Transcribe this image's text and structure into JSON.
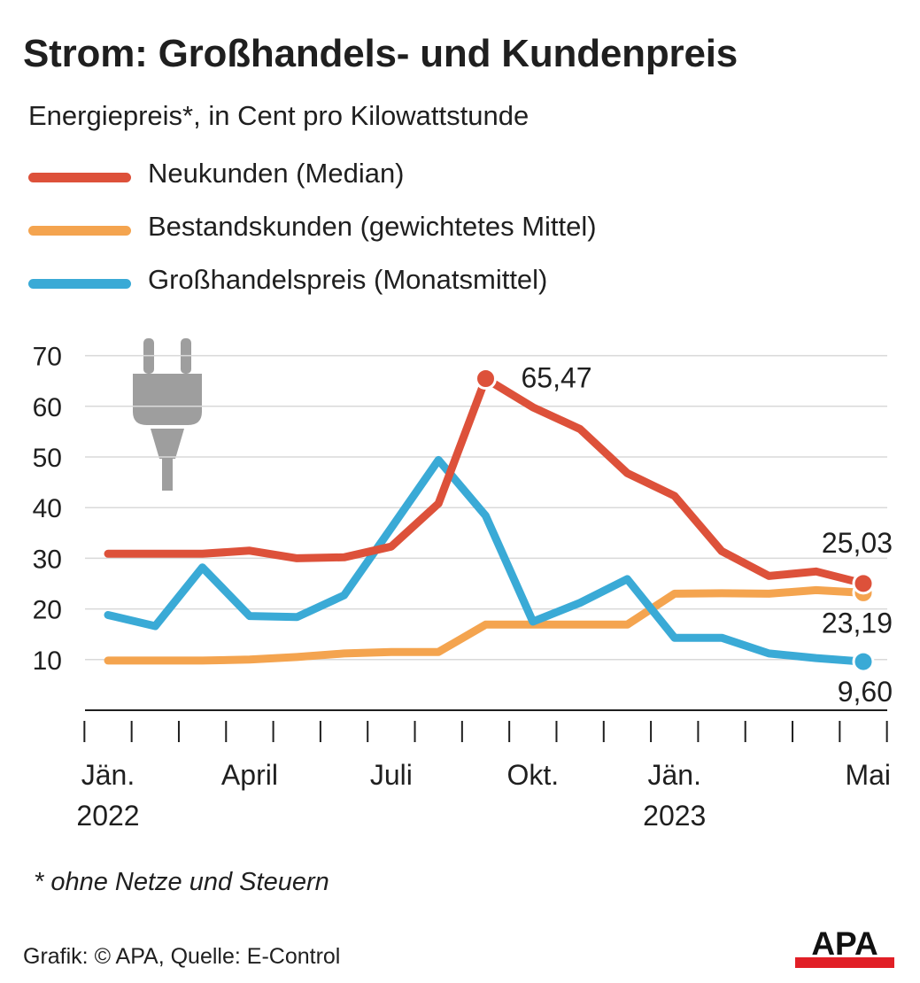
{
  "header": {
    "title": "Strom: Großhandels- und Kundenpreis",
    "subtitle": "Energiepreis*, in Cent pro Kilowattstunde"
  },
  "footer": {
    "footnote": "* ohne Netze und Steuern",
    "credit": "Grafik: © APA, Quelle: E-Control",
    "logo_text": "APA"
  },
  "colors": {
    "neukunden": "#dd513a",
    "bestandskunden": "#f4a44f",
    "grosshandel": "#3aaad6",
    "grid": "#d9d9d9",
    "axis": "#1f1f1f",
    "icon": "#9e9e9e"
  },
  "icon": "plug-icon",
  "chart_data": {
    "type": "line",
    "x_months": [
      "2022-01",
      "2022-02",
      "2022-03",
      "2022-04",
      "2022-05",
      "2022-06",
      "2022-07",
      "2022-08",
      "2022-09",
      "2022-10",
      "2022-11",
      "2022-12",
      "2023-01",
      "2023-02",
      "2023-03",
      "2023-04",
      "2023-05"
    ],
    "x_tick_labels": [
      {
        "month": "2022-01",
        "lines": [
          "Jän.",
          "2022"
        ]
      },
      {
        "month": "2022-04",
        "lines": [
          "April"
        ]
      },
      {
        "month": "2022-07",
        "lines": [
          "Juli"
        ]
      },
      {
        "month": "2022-10",
        "lines": [
          "Okt."
        ]
      },
      {
        "month": "2023-01",
        "lines": [
          "Jän.",
          "2023"
        ]
      },
      {
        "month": "2023-05",
        "lines": [
          "Mai"
        ]
      }
    ],
    "y_ticks": [
      10,
      20,
      30,
      40,
      50,
      60,
      70
    ],
    "ylim": [
      0,
      70
    ],
    "grid": true,
    "series": [
      {
        "name": "Neukunden (Median)",
        "color_key": "neukunden",
        "values": [
          30.9,
          30.9,
          30.9,
          31.5,
          30.0,
          30.2,
          32.3,
          40.8,
          65.47,
          59.8,
          55.5,
          46.8,
          42.3,
          31.4,
          26.5,
          27.4,
          25.03
        ],
        "end_label": "25,03",
        "peak_label": "65,47"
      },
      {
        "name": "Bestandskunden (gewichtetes Mittel)",
        "color_key": "bestandskunden",
        "values": [
          9.8,
          9.8,
          9.8,
          10.0,
          10.5,
          11.2,
          11.5,
          11.5,
          16.9,
          16.9,
          16.9,
          16.9,
          23.0,
          23.1,
          23.0,
          23.7,
          23.19
        ],
        "end_label": "23,19"
      },
      {
        "name": "Großhandelspreis (Monatsmittel)",
        "color_key": "grosshandel",
        "values": [
          18.8,
          16.6,
          28.2,
          18.6,
          18.4,
          22.7,
          36.0,
          49.4,
          38.4,
          17.5,
          21.2,
          25.9,
          14.3,
          14.3,
          11.2,
          10.3,
          9.6
        ],
        "end_label": "9,60"
      }
    ]
  }
}
